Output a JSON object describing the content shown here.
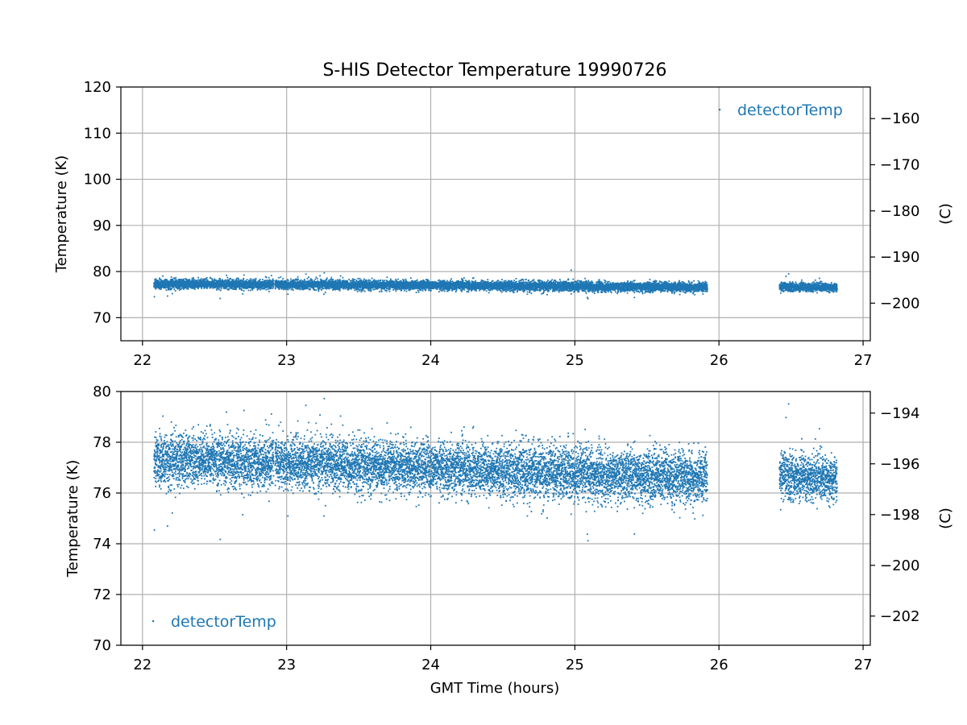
{
  "chart_data": {
    "type": "scatter",
    "title": "S-HIS Detector Temperature 19990726",
    "marker_color": "#1f77b4",
    "panels": [
      {
        "ylabel": "Temperature (K)",
        "right_ylabel": "(C)",
        "ylim": [
          65,
          120
        ],
        "yticks": [
          "70",
          "80",
          "90",
          "100",
          "110",
          "120"
        ],
        "right_yticks": [
          "−200",
          "−190",
          "−180",
          "−170",
          "−160"
        ],
        "xlim": [
          21.85,
          27.05
        ],
        "xticks": [
          "22",
          "23",
          "24",
          "25",
          "26",
          "27"
        ],
        "grid": true,
        "legend": {
          "label": "detectorTemp",
          "placement": "upper right"
        }
      },
      {
        "ylabel": "Temperature (K)",
        "right_ylabel": "(C)",
        "ylim": [
          70,
          80
        ],
        "yticks": [
          "70",
          "72",
          "74",
          "76",
          "78",
          "80"
        ],
        "right_yticks": [
          "−202",
          "−200",
          "−198",
          "−196",
          "−194"
        ],
        "xlim": [
          21.85,
          27.05
        ],
        "xticks": [
          "22",
          "23",
          "24",
          "25",
          "26",
          "27"
        ],
        "xlabel": "GMT Time (hours)",
        "grid": true,
        "legend": {
          "label": "detectorTemp",
          "placement": "lower left"
        }
      }
    ],
    "series": [
      {
        "name": "detectorTemp",
        "segments": [
          {
            "x_range": [
              22.08,
              22.91
            ],
            "mean": [
              77.3,
              77.2
            ],
            "spread": 0.5
          },
          {
            "x_range": [
              22.92,
              25.92
            ],
            "mean": [
              77.2,
              76.6
            ],
            "spread": 0.5
          },
          {
            "x_range": [
              26.42,
              26.82
            ],
            "mean": [
              76.7,
              76.6
            ],
            "spread": 0.45
          }
        ]
      }
    ]
  }
}
